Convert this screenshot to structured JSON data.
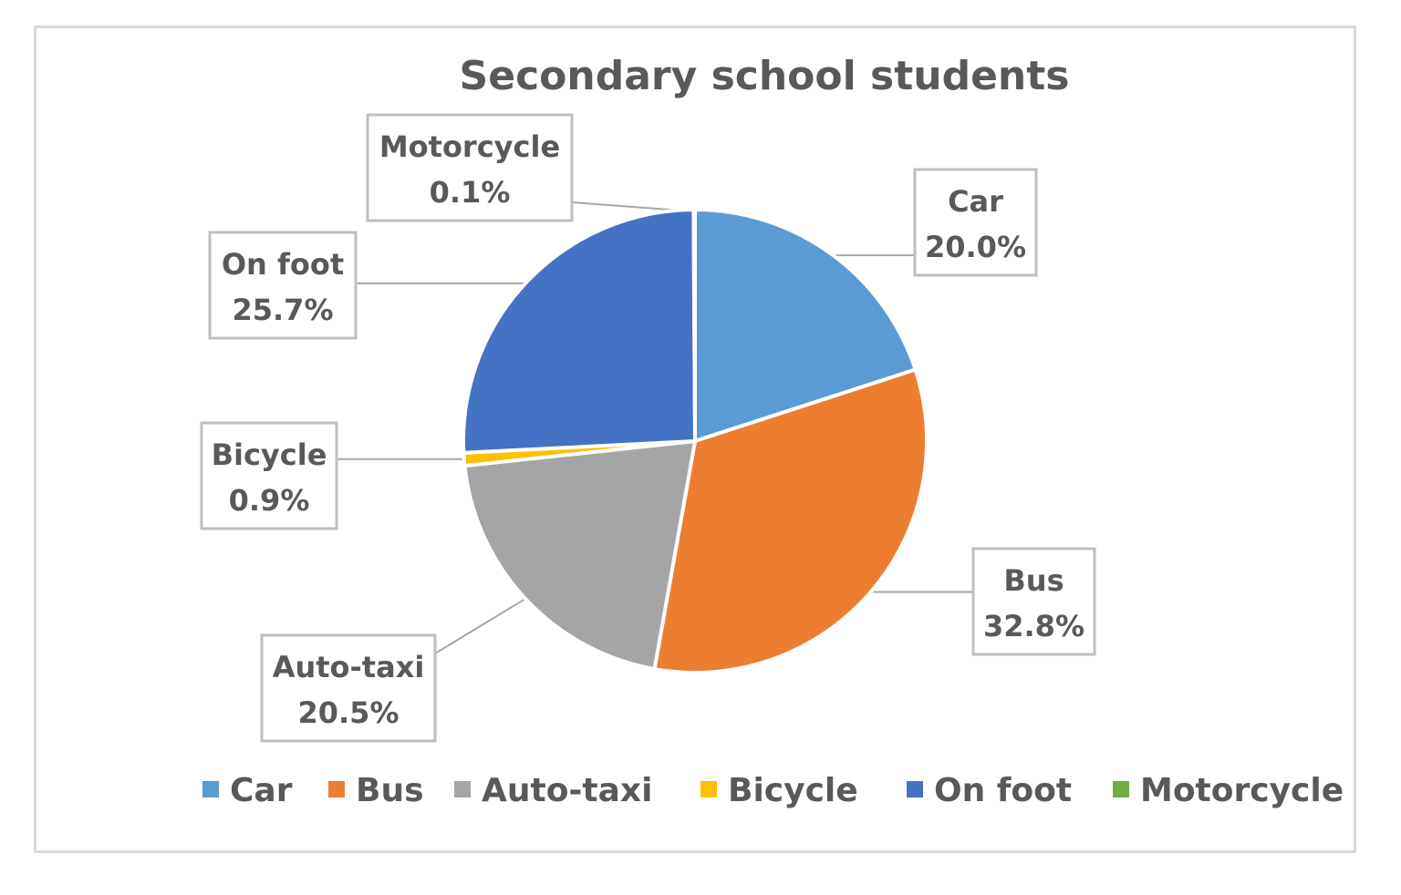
{
  "chart_data": {
    "type": "pie",
    "title": "Secondary school students",
    "categories": [
      "Car",
      "Bus",
      "Auto-taxi",
      "Bicycle",
      "On foot",
      "Motorcycle"
    ],
    "values": [
      20.0,
      32.8,
      20.5,
      0.9,
      25.7,
      0.1
    ],
    "value_labels": [
      "20.0%",
      "32.8%",
      "20.5%",
      "0.9%",
      "25.7%",
      "0.1%"
    ],
    "colors": [
      "#5b9bd5",
      "#ed7d31",
      "#a5a5a5",
      "#ffc000",
      "#4472c4",
      "#70ad47"
    ],
    "legend_position": "bottom",
    "start_angle": "12 o'clock",
    "direction": "clockwise"
  }
}
